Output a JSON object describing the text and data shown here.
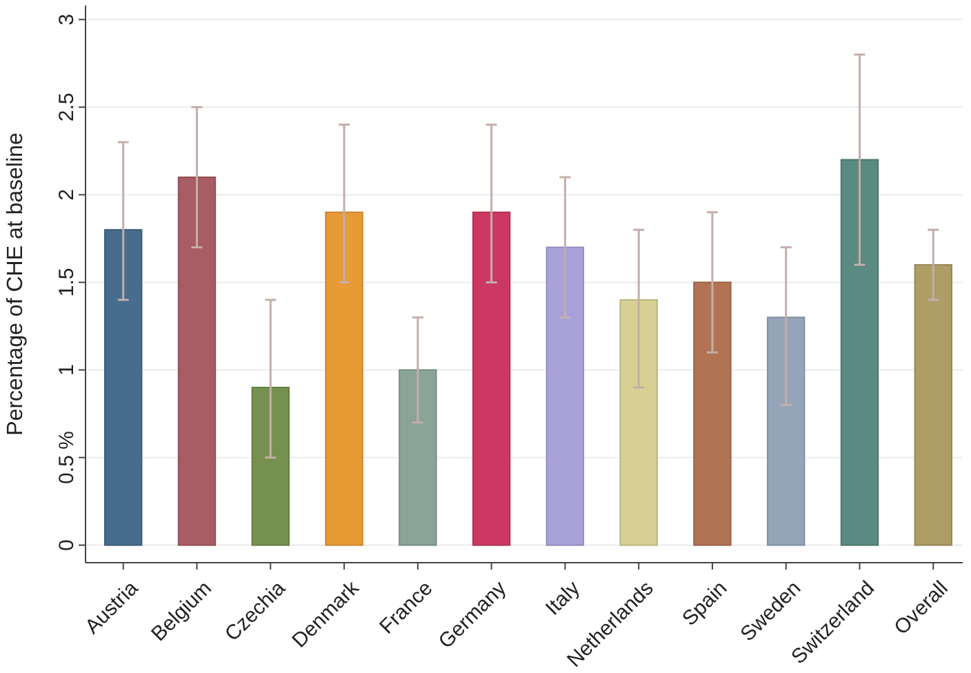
{
  "chart_data": {
    "type": "bar",
    "ylabel": "Percentage of CHE at baseline",
    "categories": [
      "Austria",
      "Belgium",
      "Czechia",
      "Denmark",
      "France",
      "Germany",
      "Italy",
      "Netherlands",
      "Spain",
      "Sweden",
      "Switzerland",
      "Overall"
    ],
    "values": [
      1.8,
      2.1,
      0.9,
      1.9,
      1.0,
      1.9,
      1.7,
      1.4,
      1.5,
      1.3,
      2.2,
      1.6
    ],
    "colors": [
      "#466c8e",
      "#a85c63",
      "#76914f",
      "#e89a35",
      "#8aa498",
      "#cc3862",
      "#a9a2da",
      "#d7d093",
      "#b17353",
      "#94a5b9",
      "#5a8a80",
      "#ae9d65"
    ],
    "errors": [
      [
        1.4,
        2.3
      ],
      [
        1.7,
        2.5
      ],
      [
        0.5,
        1.4
      ],
      [
        1.5,
        2.4
      ],
      [
        0.7,
        1.3
      ],
      [
        1.5,
        2.4
      ],
      [
        1.3,
        2.1
      ],
      [
        0.9,
        1.8
      ],
      [
        1.1,
        1.9
      ],
      [
        0.8,
        1.7
      ],
      [
        1.6,
        2.8
      ],
      [
        1.4,
        1.8
      ]
    ],
    "ylim": [
      -0.1,
      3.08
    ],
    "yticks": [
      0,
      {
        "value": 0.5,
        "label": "0.5 %"
      },
      1,
      1.5,
      2,
      2.5,
      3
    ],
    "grid": "y"
  }
}
